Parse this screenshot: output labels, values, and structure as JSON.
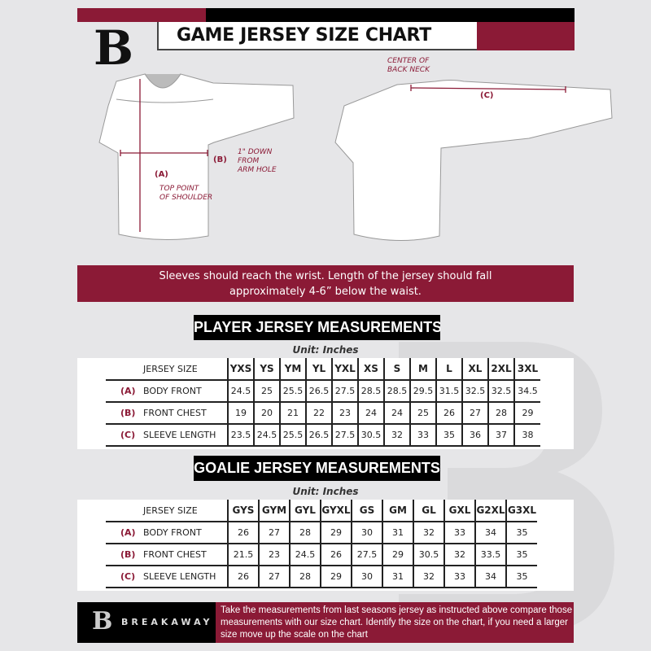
{
  "header": {
    "title": "GAME JERSEY SIZE CHART",
    "logo_text": "B"
  },
  "diagram": {
    "front": {
      "label_a": "(A)",
      "note_a": "TOP POINT\nOF SHOULDER",
      "label_b": "(B)",
      "note_b": "1\" DOWN\nFROM\nARM HOLE"
    },
    "back": {
      "note_c": "CENTER OF\nBACK NECK",
      "label_c": "(C)"
    }
  },
  "instruction": "Sleeves should reach the wrist. Length of the jersey should fall approximately 4-6” below the waist.",
  "player": {
    "title": "PLAYER JERSEY MEASUREMENTS",
    "unit": "Unit: Inches",
    "size_header": "JERSEY SIZE",
    "sizes": [
      "YXS",
      "YS",
      "YM",
      "YL",
      "YXL",
      "XS",
      "S",
      "M",
      "L",
      "XL",
      "2XL",
      "3XL"
    ],
    "rows": [
      {
        "letter": "(A)",
        "label": "BODY FRONT",
        "values": [
          "24.5",
          "25",
          "25.5",
          "26.5",
          "27.5",
          "28.5",
          "28.5",
          "29.5",
          "31.5",
          "32.5",
          "32.5",
          "34.5"
        ]
      },
      {
        "letter": "(B)",
        "label": "FRONT CHEST",
        "values": [
          "19",
          "20",
          "21",
          "22",
          "23",
          "24",
          "24",
          "25",
          "26",
          "27",
          "28",
          "29"
        ]
      },
      {
        "letter": "(C)",
        "label": "SLEEVE LENGTH",
        "values": [
          "23.5",
          "24.5",
          "25.5",
          "26.5",
          "27.5",
          "30.5",
          "32",
          "33",
          "35",
          "36",
          "37",
          "38"
        ]
      }
    ]
  },
  "goalie": {
    "title": "GOALIE JERSEY MEASUREMENTS",
    "unit": "Unit: Inches",
    "size_header": "JERSEY SIZE",
    "sizes": [
      "GYS",
      "GYM",
      "GYL",
      "GYXL",
      "GS",
      "GM",
      "GL",
      "GXL",
      "G2XL",
      "G3XL"
    ],
    "rows": [
      {
        "letter": "(A)",
        "label": "BODY FRONT",
        "values": [
          "26",
          "27",
          "28",
          "29",
          "30",
          "31",
          "32",
          "33",
          "34",
          "35"
        ]
      },
      {
        "letter": "(B)",
        "label": "FRONT CHEST",
        "values": [
          "21.5",
          "23",
          "24.5",
          "26",
          "27.5",
          "29",
          "30.5",
          "32",
          "33.5",
          "35"
        ]
      },
      {
        "letter": "(C)",
        "label": "SLEEVE LENGTH",
        "values": [
          "26",
          "27",
          "28",
          "29",
          "30",
          "31",
          "32",
          "33",
          "34",
          "35"
        ]
      }
    ]
  },
  "footer": {
    "brand": "BREAKAWAY",
    "logo_text": "B",
    "text": "Take the measurements from last seasons jersey as instructed above compare those measurements  with our size chart. Identify the size on the chart, if you need a larger size move up the scale on the chart"
  },
  "colors": {
    "maroon": "#8b1a36",
    "black": "#000000",
    "background": "#e6e6e8"
  }
}
